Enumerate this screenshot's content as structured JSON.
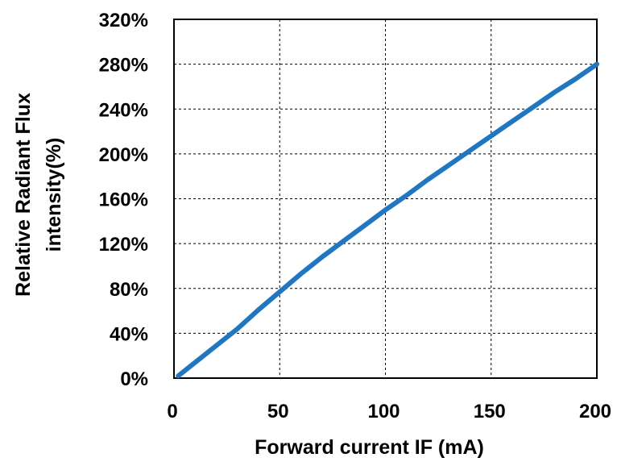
{
  "chart_data": {
    "type": "line",
    "xlabel": "Forward current IF (mA)",
    "ylabel_lines": [
      "Relative Radiant Flux",
      "intensity(%)"
    ],
    "xlim": [
      0,
      200
    ],
    "ylim": [
      0,
      320
    ],
    "x_ticks": [
      0,
      50,
      100,
      150,
      200
    ],
    "y_ticks": [
      0,
      40,
      80,
      120,
      160,
      200,
      240,
      280,
      320
    ],
    "x_tick_labels": [
      "0",
      "50",
      "100",
      "150",
      "200"
    ],
    "y_tick_labels": [
      "0%",
      "40%",
      "80%",
      "120%",
      "160%",
      "200%",
      "240%",
      "280%",
      "320%"
    ],
    "grid": true,
    "grid_style": "dashed",
    "series": [
      {
        "color": "#1f77c4",
        "x": [
          2,
          10,
          20,
          30,
          40,
          50,
          60,
          70,
          80,
          90,
          100,
          110,
          120,
          130,
          140,
          150,
          160,
          170,
          180,
          190,
          200
        ],
        "y": [
          2,
          14,
          29,
          44,
          61,
          77,
          93,
          108,
          122,
          136,
          150,
          163,
          177,
          190,
          203,
          216,
          229,
          242,
          255,
          267,
          280
        ]
      }
    ]
  }
}
